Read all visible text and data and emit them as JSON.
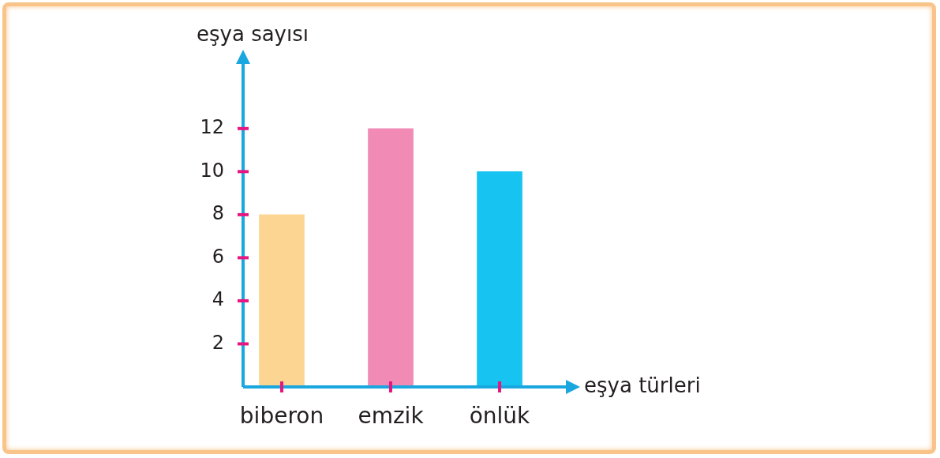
{
  "chart_data": {
    "type": "bar",
    "xlabel": "eşya türleri",
    "ylabel": "eşya sayısı",
    "categories": [
      "biberon",
      "emzik",
      "önlük"
    ],
    "values": [
      8,
      12,
      10
    ],
    "colors": [
      "#fdd592",
      "#f18bb6",
      "#16c3f1"
    ],
    "ylim": [
      0,
      15
    ],
    "yticks": [
      2,
      4,
      6,
      8,
      10,
      12
    ]
  }
}
